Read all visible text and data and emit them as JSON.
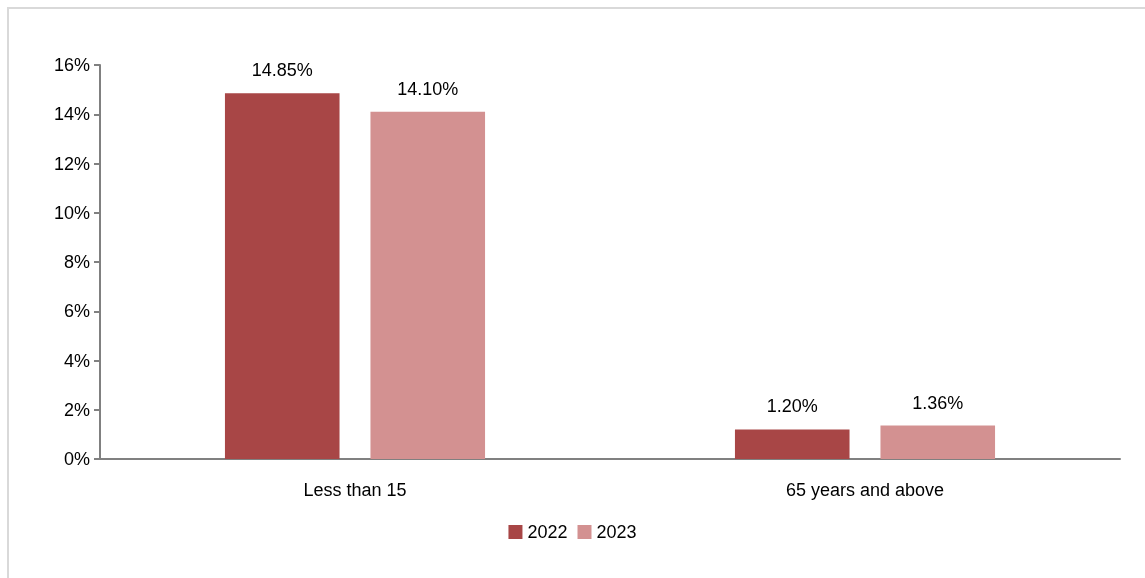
{
  "chart_data": {
    "type": "bar",
    "categories": [
      "Less than 15",
      "65 years and above"
    ],
    "series": [
      {
        "name": "2022",
        "color": "#a84646",
        "values": [
          14.85,
          1.2
        ],
        "value_labels": [
          "14.85%",
          "1.20%"
        ]
      },
      {
        "name": "2023",
        "color": "#d39191",
        "values": [
          14.1,
          1.36
        ],
        "value_labels": [
          "14.10%",
          "1.36%"
        ]
      }
    ],
    "ylim": [
      0,
      16
    ],
    "yticks": [
      {
        "value": 0,
        "label": "0%"
      },
      {
        "value": 2,
        "label": "2%"
      },
      {
        "value": 4,
        "label": "4%"
      },
      {
        "value": 6,
        "label": "6%"
      },
      {
        "value": 8,
        "label": "8%"
      },
      {
        "value": 10,
        "label": "10%"
      },
      {
        "value": 12,
        "label": "12%"
      },
      {
        "value": 14,
        "label": "14%"
      },
      {
        "value": 16,
        "label": "16%"
      }
    ],
    "grid": false,
    "legend": "bottom"
  }
}
